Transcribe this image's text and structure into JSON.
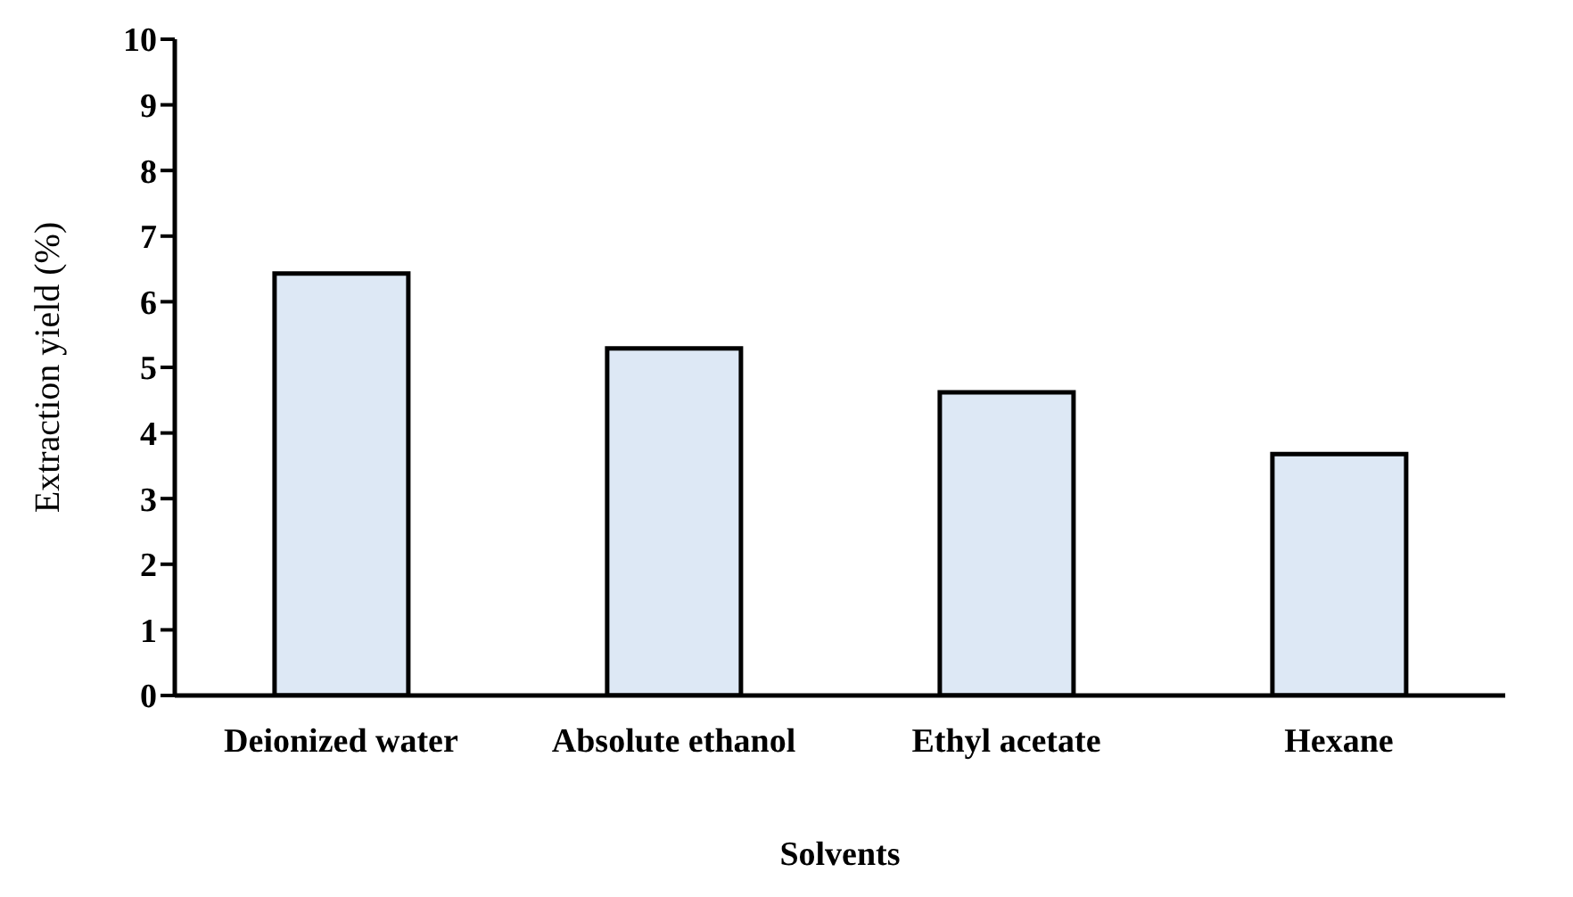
{
  "chart_data": {
    "type": "bar",
    "xlabel": "Solvents",
    "ylabel": "Extraction yield (%)",
    "categories": [
      "Deionized water",
      "Absolute ethanol",
      "Ethyl acetate",
      "Hexane"
    ],
    "values": [
      6.43,
      5.29,
      4.62,
      3.68
    ],
    "color": "#dde8f5",
    "ylim": [
      0,
      10
    ],
    "yticks": [
      0,
      1,
      2,
      3,
      4,
      5,
      6,
      7,
      8,
      9,
      10
    ],
    "grid": false,
    "legend": false
  }
}
